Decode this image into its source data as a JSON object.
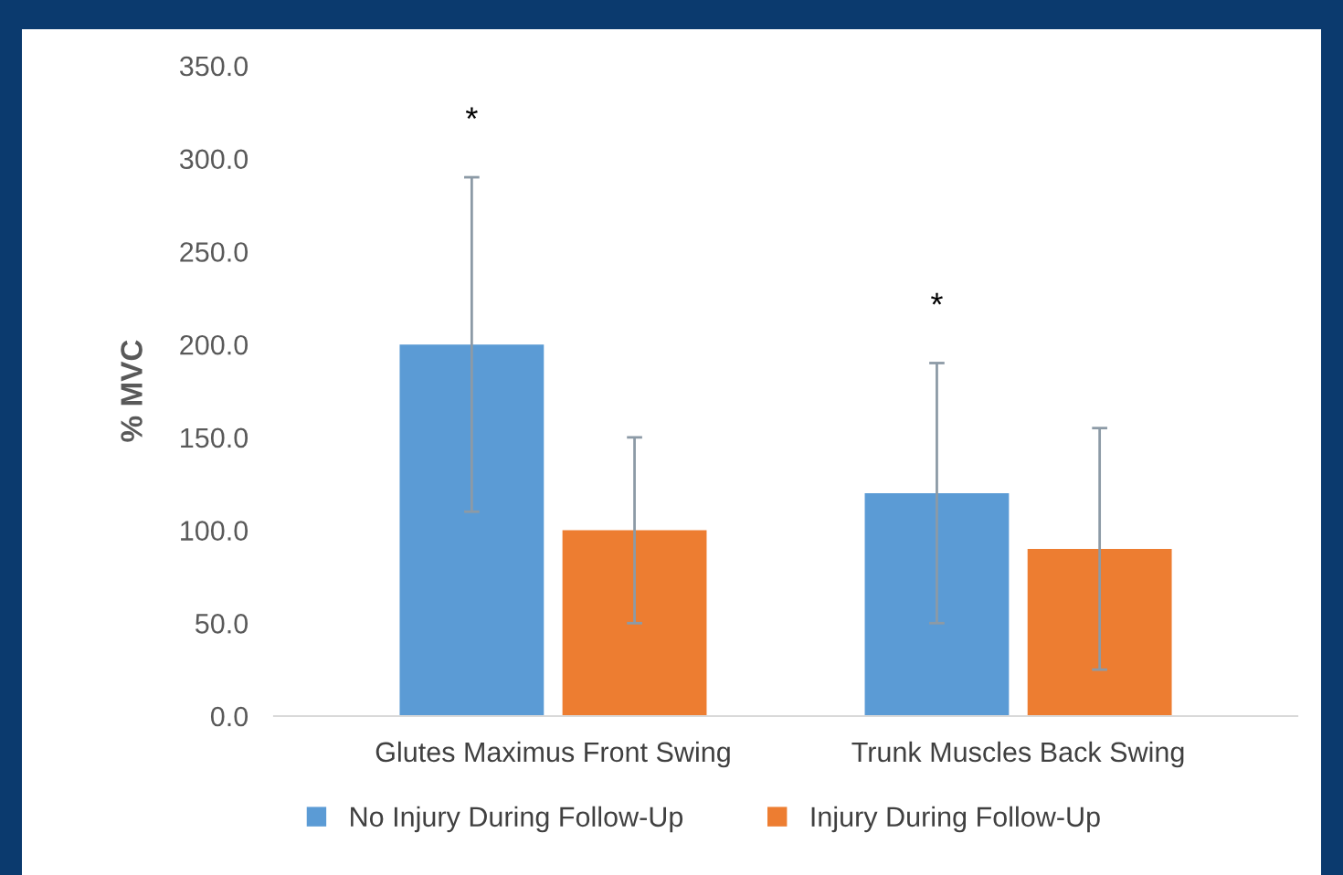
{
  "chart_data": {
    "type": "bar",
    "ylabel": "% MVC",
    "categories": [
      "Glutes Maximus Front Swing",
      "Trunk Muscles Back Swing"
    ],
    "series": [
      {
        "name": "No Injury During Follow-Up",
        "color": "#5b9bd5",
        "values": [
          200,
          120
        ],
        "errors": [
          90,
          70
        ]
      },
      {
        "name": "Injury During Follow-Up",
        "color": "#ed7d31",
        "values": [
          100,
          90
        ],
        "errors": [
          50,
          65
        ]
      }
    ],
    "ylim": [
      0,
      350
    ],
    "yticks": [
      {
        "value": 0,
        "label": "0.0"
      },
      {
        "value": 50,
        "label": "50.0"
      },
      {
        "value": 100,
        "label": "100.0"
      },
      {
        "value": 150,
        "label": "150.0"
      },
      {
        "value": 200,
        "label": "200.0"
      },
      {
        "value": 250,
        "label": "250.0"
      },
      {
        "value": 300,
        "label": "300.0"
      },
      {
        "value": 350,
        "label": "350.0"
      }
    ],
    "annotations": [
      "*",
      "*"
    ],
    "grid": false,
    "legend": "bottom"
  }
}
